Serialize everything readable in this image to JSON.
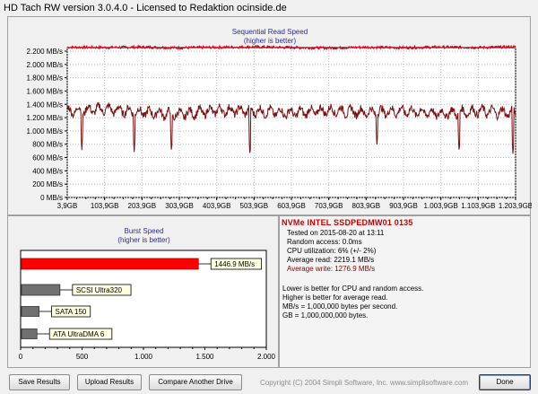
{
  "window": {
    "title": "HD Tach RW version 3.0.4.0 - Licensed to Redaktion ocinside.de"
  },
  "sequential": {
    "title": "Sequential Read Speed",
    "subtitle": "(higher is better)",
    "y_ticks": [
      "0 MB/s",
      "200 MB/s",
      "400 MB/s",
      "600 MB/s",
      "800 MB/s",
      "1.000 MB/s",
      "1.200 MB/s",
      "1.400 MB/s",
      "1.600 MB/s",
      "1.800 MB/s",
      "2.000 MB/s",
      "2.200 MB/s"
    ],
    "x_ticks": [
      "3,9GB",
      "103,9GB",
      "203,9GB",
      "303,9GB",
      "403,9GB",
      "503,9GB",
      "603,9GB",
      "703,9GB",
      "803,9GB",
      "903,9GB",
      "1.003,9GB",
      "1.103,9GB",
      "1.203,9GB"
    ]
  },
  "burst": {
    "title": "Burst Speed",
    "subtitle": "(higher is better)",
    "x_ticks": [
      "0",
      "500",
      "1.000",
      "1.500",
      "2.000"
    ]
  },
  "info": {
    "drive_name": "NVMe INTEL SSDPEDMW01 0135",
    "tested_on": "Tested on 2015-08-20 at 13:11",
    "random_access": "Random access: 0.0ms",
    "cpu_utilization": "CPU utilization: 6% (+/- 2%)",
    "average_read": "Average read: 2219.1 MB/s",
    "average_write": "Average write: 1276.9 MB/s",
    "notes": [
      "Lower is better for CPU and random access.",
      "Higher is better for average read.",
      "MB/s = 1,000,000 bytes per second.",
      "GB = 1,000,000,000 bytes."
    ]
  },
  "buttons": {
    "save": "Save Results",
    "upload": "Upload Results",
    "compare": "Compare Another Drive",
    "done": "Done"
  },
  "copyright": "Copyright (C) 2004 Simpli Software, Inc. www.simplisoftware.com",
  "colors": {
    "read_line": "#e0001a",
    "write_line": "#7b1010",
    "burst_this": "#ff0000",
    "burst_ref": "#707070",
    "title_blue": "#2a2a9c",
    "drive_red": "#cc0000",
    "write_text": "#800000"
  },
  "chart_data": [
    {
      "type": "line",
      "title": "Sequential Read Speed",
      "subtitle": "(higher is better)",
      "xlabel": "",
      "ylabel": "",
      "xlim": [
        3.9,
        1203.9
      ],
      "ylim": [
        0,
        2200
      ],
      "grid": true,
      "x": [
        3.9,
        103.9,
        203.9,
        303.9,
        403.9,
        503.9,
        603.9,
        703.9,
        803.9,
        903.9,
        1003.9,
        1103.9,
        1203.9
      ],
      "series": [
        {
          "name": "Average read",
          "values": [
            2260,
            2255,
            2262,
            2250,
            2258,
            2265,
            2255,
            2248,
            2260,
            2252,
            2262,
            2255,
            2265
          ]
        },
        {
          "name": "Average write",
          "values": [
            1300,
            1330,
            1280,
            1250,
            1310,
            1300,
            1270,
            1310,
            1280,
            1300,
            1260,
            1300,
            1270
          ]
        }
      ],
      "write_dips": [
        {
          "x": 43,
          "y": 700
        },
        {
          "x": 183,
          "y": 670
        },
        {
          "x": 283,
          "y": 660
        },
        {
          "x": 493,
          "y": 610
        },
        {
          "x": 833,
          "y": 760
        },
        {
          "x": 1053,
          "y": 660
        },
        {
          "x": 1197,
          "y": 620
        }
      ]
    },
    {
      "type": "bar",
      "title": "Burst Speed",
      "subtitle": "(higher is better)",
      "xlim": [
        0,
        2000
      ],
      "categories": [
        "1446.9 MB/s",
        "SCSI Ultra320",
        "SATA 150",
        "ATA UltraDMA 6"
      ],
      "values": [
        1446.9,
        320,
        150,
        133
      ]
    }
  ]
}
